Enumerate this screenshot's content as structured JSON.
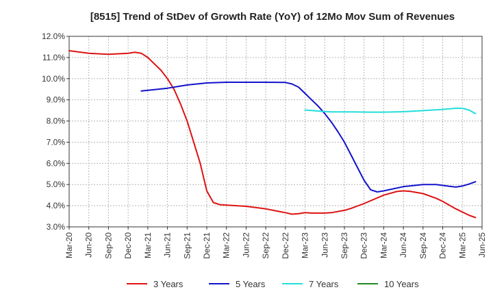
{
  "chart_data": {
    "type": "line",
    "title": "[8515]  Trend of StDev of Growth Rate (YoY) of 12Mo Mov Sum of Revenues",
    "xlabel": "",
    "ylabel": "",
    "ylim": [
      3.0,
      12.0
    ],
    "y_ticks": [
      "3.0%",
      "4.0%",
      "5.0%",
      "6.0%",
      "7.0%",
      "8.0%",
      "9.0%",
      "10.0%",
      "11.0%",
      "12.0%"
    ],
    "x_ticks": [
      "Mar-20",
      "Jun-20",
      "Sep-20",
      "Dec-20",
      "Mar-21",
      "Jun-21",
      "Sep-21",
      "Dec-21",
      "Mar-22",
      "Jun-22",
      "Sep-22",
      "Dec-22",
      "Mar-23",
      "Jun-23",
      "Sep-23",
      "Dec-23",
      "Mar-24",
      "Jun-24",
      "Sep-24",
      "Dec-24",
      "Mar-25",
      "Jun-25"
    ],
    "x_months_total": 63,
    "grid": true,
    "legend_position": "bottom",
    "series": [
      {
        "name": "3 Years",
        "color": "#dd1111",
        "points": [
          [
            0,
            11.32
          ],
          [
            3,
            11.2
          ],
          [
            6,
            11.15
          ],
          [
            9,
            11.2
          ],
          [
            10,
            11.25
          ],
          [
            11,
            11.2
          ],
          [
            12,
            11.0
          ],
          [
            13,
            10.7
          ],
          [
            14,
            10.4
          ],
          [
            15,
            10.0
          ],
          [
            16,
            9.5
          ],
          [
            17,
            8.8
          ],
          [
            18,
            8.0
          ],
          [
            19,
            7.0
          ],
          [
            20,
            6.0
          ],
          [
            21,
            4.7
          ],
          [
            22,
            4.15
          ],
          [
            23,
            4.05
          ],
          [
            24,
            4.03
          ],
          [
            27,
            3.97
          ],
          [
            30,
            3.85
          ],
          [
            32,
            3.73
          ],
          [
            33,
            3.67
          ],
          [
            34,
            3.6
          ],
          [
            35,
            3.62
          ],
          [
            36,
            3.67
          ],
          [
            37,
            3.65
          ],
          [
            39,
            3.65
          ],
          [
            40,
            3.67
          ],
          [
            42,
            3.78
          ],
          [
            43,
            3.87
          ],
          [
            45,
            4.1
          ],
          [
            48,
            4.5
          ],
          [
            50,
            4.67
          ],
          [
            51,
            4.7
          ],
          [
            52,
            4.68
          ],
          [
            54,
            4.57
          ],
          [
            56,
            4.35
          ],
          [
            57,
            4.2
          ],
          [
            59,
            3.85
          ],
          [
            61,
            3.55
          ],
          [
            62,
            3.44
          ]
        ]
      },
      {
        "name": "5 Years",
        "color": "#1111cc",
        "points": [
          [
            11,
            9.42
          ],
          [
            12,
            9.45
          ],
          [
            15,
            9.55
          ],
          [
            18,
            9.7
          ],
          [
            21,
            9.8
          ],
          [
            24,
            9.83
          ],
          [
            27,
            9.83
          ],
          [
            30,
            9.83
          ],
          [
            33,
            9.82
          ],
          [
            34,
            9.75
          ],
          [
            35,
            9.6
          ],
          [
            36,
            9.3
          ],
          [
            37,
            9.0
          ],
          [
            38,
            8.7
          ],
          [
            39,
            8.35
          ],
          [
            40,
            7.95
          ],
          [
            41,
            7.5
          ],
          [
            42,
            7.0
          ],
          [
            43,
            6.4
          ],
          [
            44,
            5.8
          ],
          [
            45,
            5.2
          ],
          [
            46,
            4.75
          ],
          [
            47,
            4.65
          ],
          [
            48,
            4.7
          ],
          [
            51,
            4.9
          ],
          [
            54,
            5.0
          ],
          [
            56,
            5.0
          ],
          [
            58,
            4.92
          ],
          [
            59,
            4.88
          ],
          [
            60,
            4.93
          ],
          [
            61,
            5.02
          ],
          [
            62,
            5.13
          ]
        ]
      },
      {
        "name": "7 Years",
        "color": "#22dddd",
        "points": [
          [
            36,
            8.52
          ],
          [
            39,
            8.45
          ],
          [
            40,
            8.43
          ],
          [
            43,
            8.43
          ],
          [
            46,
            8.42
          ],
          [
            48,
            8.42
          ],
          [
            51,
            8.44
          ],
          [
            54,
            8.49
          ],
          [
            57,
            8.55
          ],
          [
            59,
            8.6
          ],
          [
            60,
            8.6
          ],
          [
            61,
            8.52
          ],
          [
            62,
            8.35
          ]
        ]
      },
      {
        "name": "10 Years",
        "color": "#228822",
        "points": []
      }
    ]
  }
}
